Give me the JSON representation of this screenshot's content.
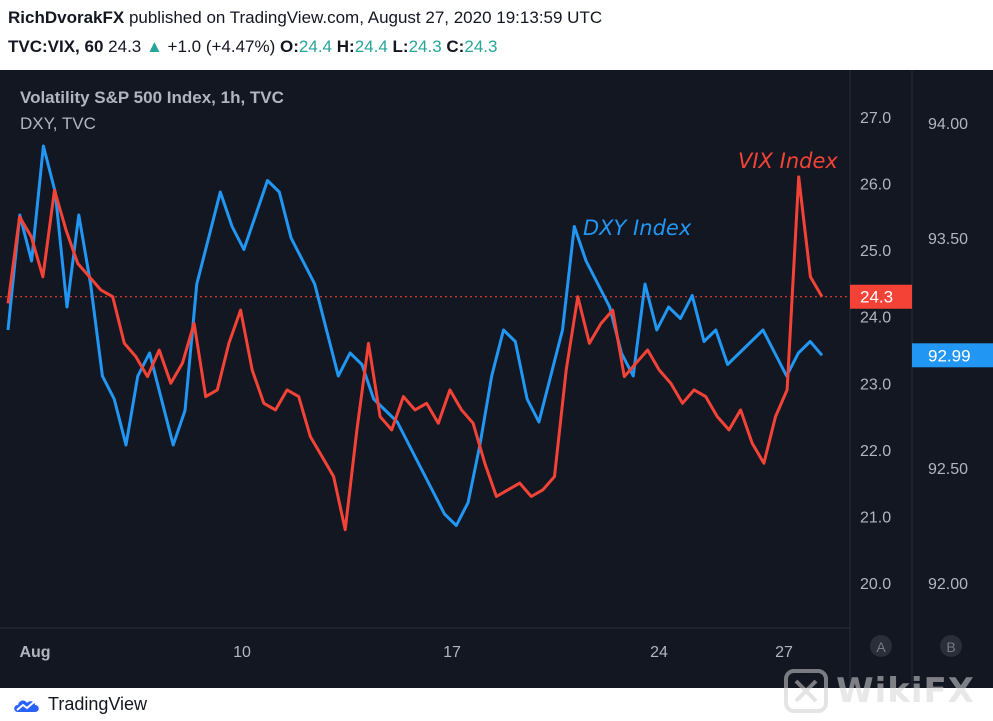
{
  "header": {
    "author": "RichDvorakFX",
    "published_text": "published on TradingView.com, August 27, 2020 19:13:59 UTC",
    "symbol": "TVC:VIX, 60",
    "last": "24.3",
    "change": "+1.0 (+4.47%)",
    "o_label": "O:",
    "o_val": "24.4",
    "h_label": "H:",
    "h_val": "24.4",
    "l_label": "L:",
    "l_val": "24.3",
    "c_label": "C:",
    "c_val": "24.3"
  },
  "legend": {
    "main": "Volatility S&P 500 Index, 1h, TVC",
    "secondary": "DXY, TVC"
  },
  "annotations": {
    "vix": "VIX Index",
    "dxy": "DXY Index"
  },
  "buttons": {
    "a": "A",
    "b": "B"
  },
  "footer": {
    "brand": "TradingView"
  },
  "watermark": "WikiFX",
  "colors": {
    "vix": "#f44336",
    "dxy": "#2196f3",
    "background": "#131722",
    "text": "#b2b5be"
  },
  "chart_data": {
    "type": "line",
    "x_ticks": [
      "Aug",
      "10",
      "17",
      "24",
      "27"
    ],
    "y_left_ticks": [
      "27.0",
      "26.0",
      "25.0",
      "24.0",
      "23.0",
      "22.0",
      "21.0",
      "20.0"
    ],
    "y_right_ticks": [
      "94.00",
      "93.50",
      "92.50",
      "92.00"
    ],
    "vix_last_label": "24.3",
    "dxy_last_label": "92.99",
    "series": [
      {
        "name": "VIX Index",
        "axis": "left",
        "values": [
          24.2,
          25.5,
          25.2,
          24.6,
          25.9,
          25.3,
          24.8,
          24.6,
          24.4,
          24.3,
          23.6,
          23.4,
          23.1,
          23.5,
          23.0,
          23.3,
          23.9,
          22.8,
          22.9,
          23.6,
          24.1,
          23.2,
          22.7,
          22.6,
          22.9,
          22.8,
          22.2,
          21.9,
          21.6,
          20.8,
          22.3,
          23.6,
          22.5,
          22.3,
          22.8,
          22.6,
          22.7,
          22.4,
          22.9,
          22.6,
          22.4,
          21.8,
          21.3,
          21.4,
          21.5,
          21.3,
          21.4,
          21.6,
          23.2,
          24.3,
          23.6,
          23.9,
          24.1,
          23.1,
          23.3,
          23.5,
          23.2,
          23.0,
          22.7,
          22.9,
          22.8,
          22.5,
          22.3,
          22.6,
          22.1,
          21.8,
          22.5,
          22.9,
          26.1,
          24.6,
          24.3
        ]
      },
      {
        "name": "DXY Index",
        "axis": "right",
        "values": [
          93.1,
          93.6,
          93.4,
          93.9,
          93.7,
          93.2,
          93.6,
          93.3,
          92.9,
          92.8,
          92.6,
          92.9,
          93.0,
          92.8,
          92.6,
          92.75,
          93.3,
          93.5,
          93.7,
          93.55,
          93.45,
          93.6,
          93.75,
          93.7,
          93.5,
          93.4,
          93.3,
          93.1,
          92.9,
          93.0,
          92.95,
          92.8,
          92.75,
          92.7,
          92.6,
          92.5,
          92.4,
          92.3,
          92.25,
          92.35,
          92.6,
          92.9,
          93.1,
          93.05,
          92.8,
          92.7,
          92.9,
          93.1,
          93.55,
          93.4,
          93.3,
          93.2,
          93.0,
          92.9,
          93.3,
          93.1,
          93.2,
          93.15,
          93.25,
          93.05,
          93.1,
          92.95,
          93.0,
          93.05,
          93.1,
          93.0,
          92.9,
          93.0,
          93.05,
          92.99
        ]
      }
    ]
  }
}
